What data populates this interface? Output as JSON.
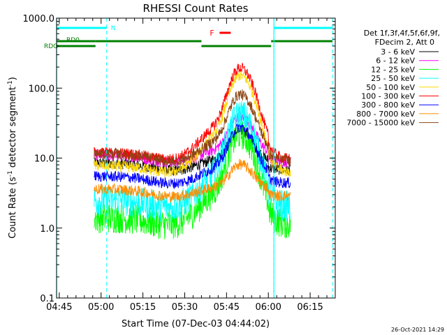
{
  "chart_data": {
    "type": "line",
    "title": "RHESSI Count Rates",
    "xlabel": "Start Time (07-Dec-03 04:44:02)",
    "ylabel_main": "Count Rate (s",
    "ylabel_sup": "-1",
    "ylabel_tail": " detector segment",
    "ylabel_close": ")",
    "x_range": [
      "04:44:02",
      "06:24:00"
    ],
    "x_ticks": [
      "04:45",
      "05:00",
      "05:15",
      "05:30",
      "05:45",
      "06:00",
      "06:15"
    ],
    "x_tick_minutes": [
      45,
      60,
      75,
      90,
      105,
      120,
      135
    ],
    "y_scale": "log",
    "ylim": [
      0.1,
      1000
    ],
    "y_ticks": [
      "0.1",
      "1.0",
      "10.0",
      "100.0",
      "1000.0"
    ],
    "y_tick_values": [
      0.1,
      1,
      10,
      100,
      1000
    ],
    "grid": false,
    "legend_position": "right",
    "legend_header": [
      "Det 1f,3f,4f,5f,6f,9f,",
      "FDecim 2, Att 0"
    ],
    "series": [
      {
        "name": "3 - 6 keV",
        "color": "#000000",
        "base": 8.5,
        "peak": 28
      },
      {
        "name": "6 - 12 keV",
        "color": "#ff00ff",
        "base": 11,
        "peak": 45
      },
      {
        "name": "12 - 25 keV",
        "color": "#00ff00",
        "base": 1.4,
        "peak": 26
      },
      {
        "name": "25 - 50 keV",
        "color": "#00ffff",
        "base": 2.5,
        "peak": 50
      },
      {
        "name": "50 - 100 keV",
        "color": "#ffd700",
        "base": 7.8,
        "peak": 180
      },
      {
        "name": "100 - 300 keV",
        "color": "#ff0000",
        "base": 12,
        "peak": 230
      },
      {
        "name": "300 - 800 keV",
        "color": "#0000ff",
        "base": 5.5,
        "peak": 32
      },
      {
        "name": "800 - 7000 keV",
        "color": "#ff8c00",
        "base": 3.6,
        "peak": 9
      },
      {
        "name": "7000 - 15000 keV",
        "color": "#8b4513",
        "base": 11.5,
        "peak": 95
      }
    ],
    "data_start_minute": 57.5,
    "data_end_minute": 128,
    "peak_minute": 110,
    "annotations": {
      "night_label": "N",
      "flare_label": "F",
      "rd0_label": "RD0",
      "rdg_label": "RDG"
    },
    "night_intervals_min": [
      [
        44,
        62
      ],
      [
        122,
        143
      ]
    ],
    "flare_interval_min": [
      [
        98,
        102
      ]
    ],
    "rd0_intervals_min": [
      [
        44,
        58
      ]
    ],
    "rdg_intervals_min": [
      [
        44,
        58
      ],
      [
        58,
        96
      ],
      [
        96,
        121
      ],
      [
        121,
        143
      ]
    ],
    "dashed_markers_min": [
      62,
      122,
      143
    ],
    "solid_markers_min": [
      44,
      122
    ]
  },
  "footer": {
    "timestamp": "26-Oct-2021 14:29"
  }
}
